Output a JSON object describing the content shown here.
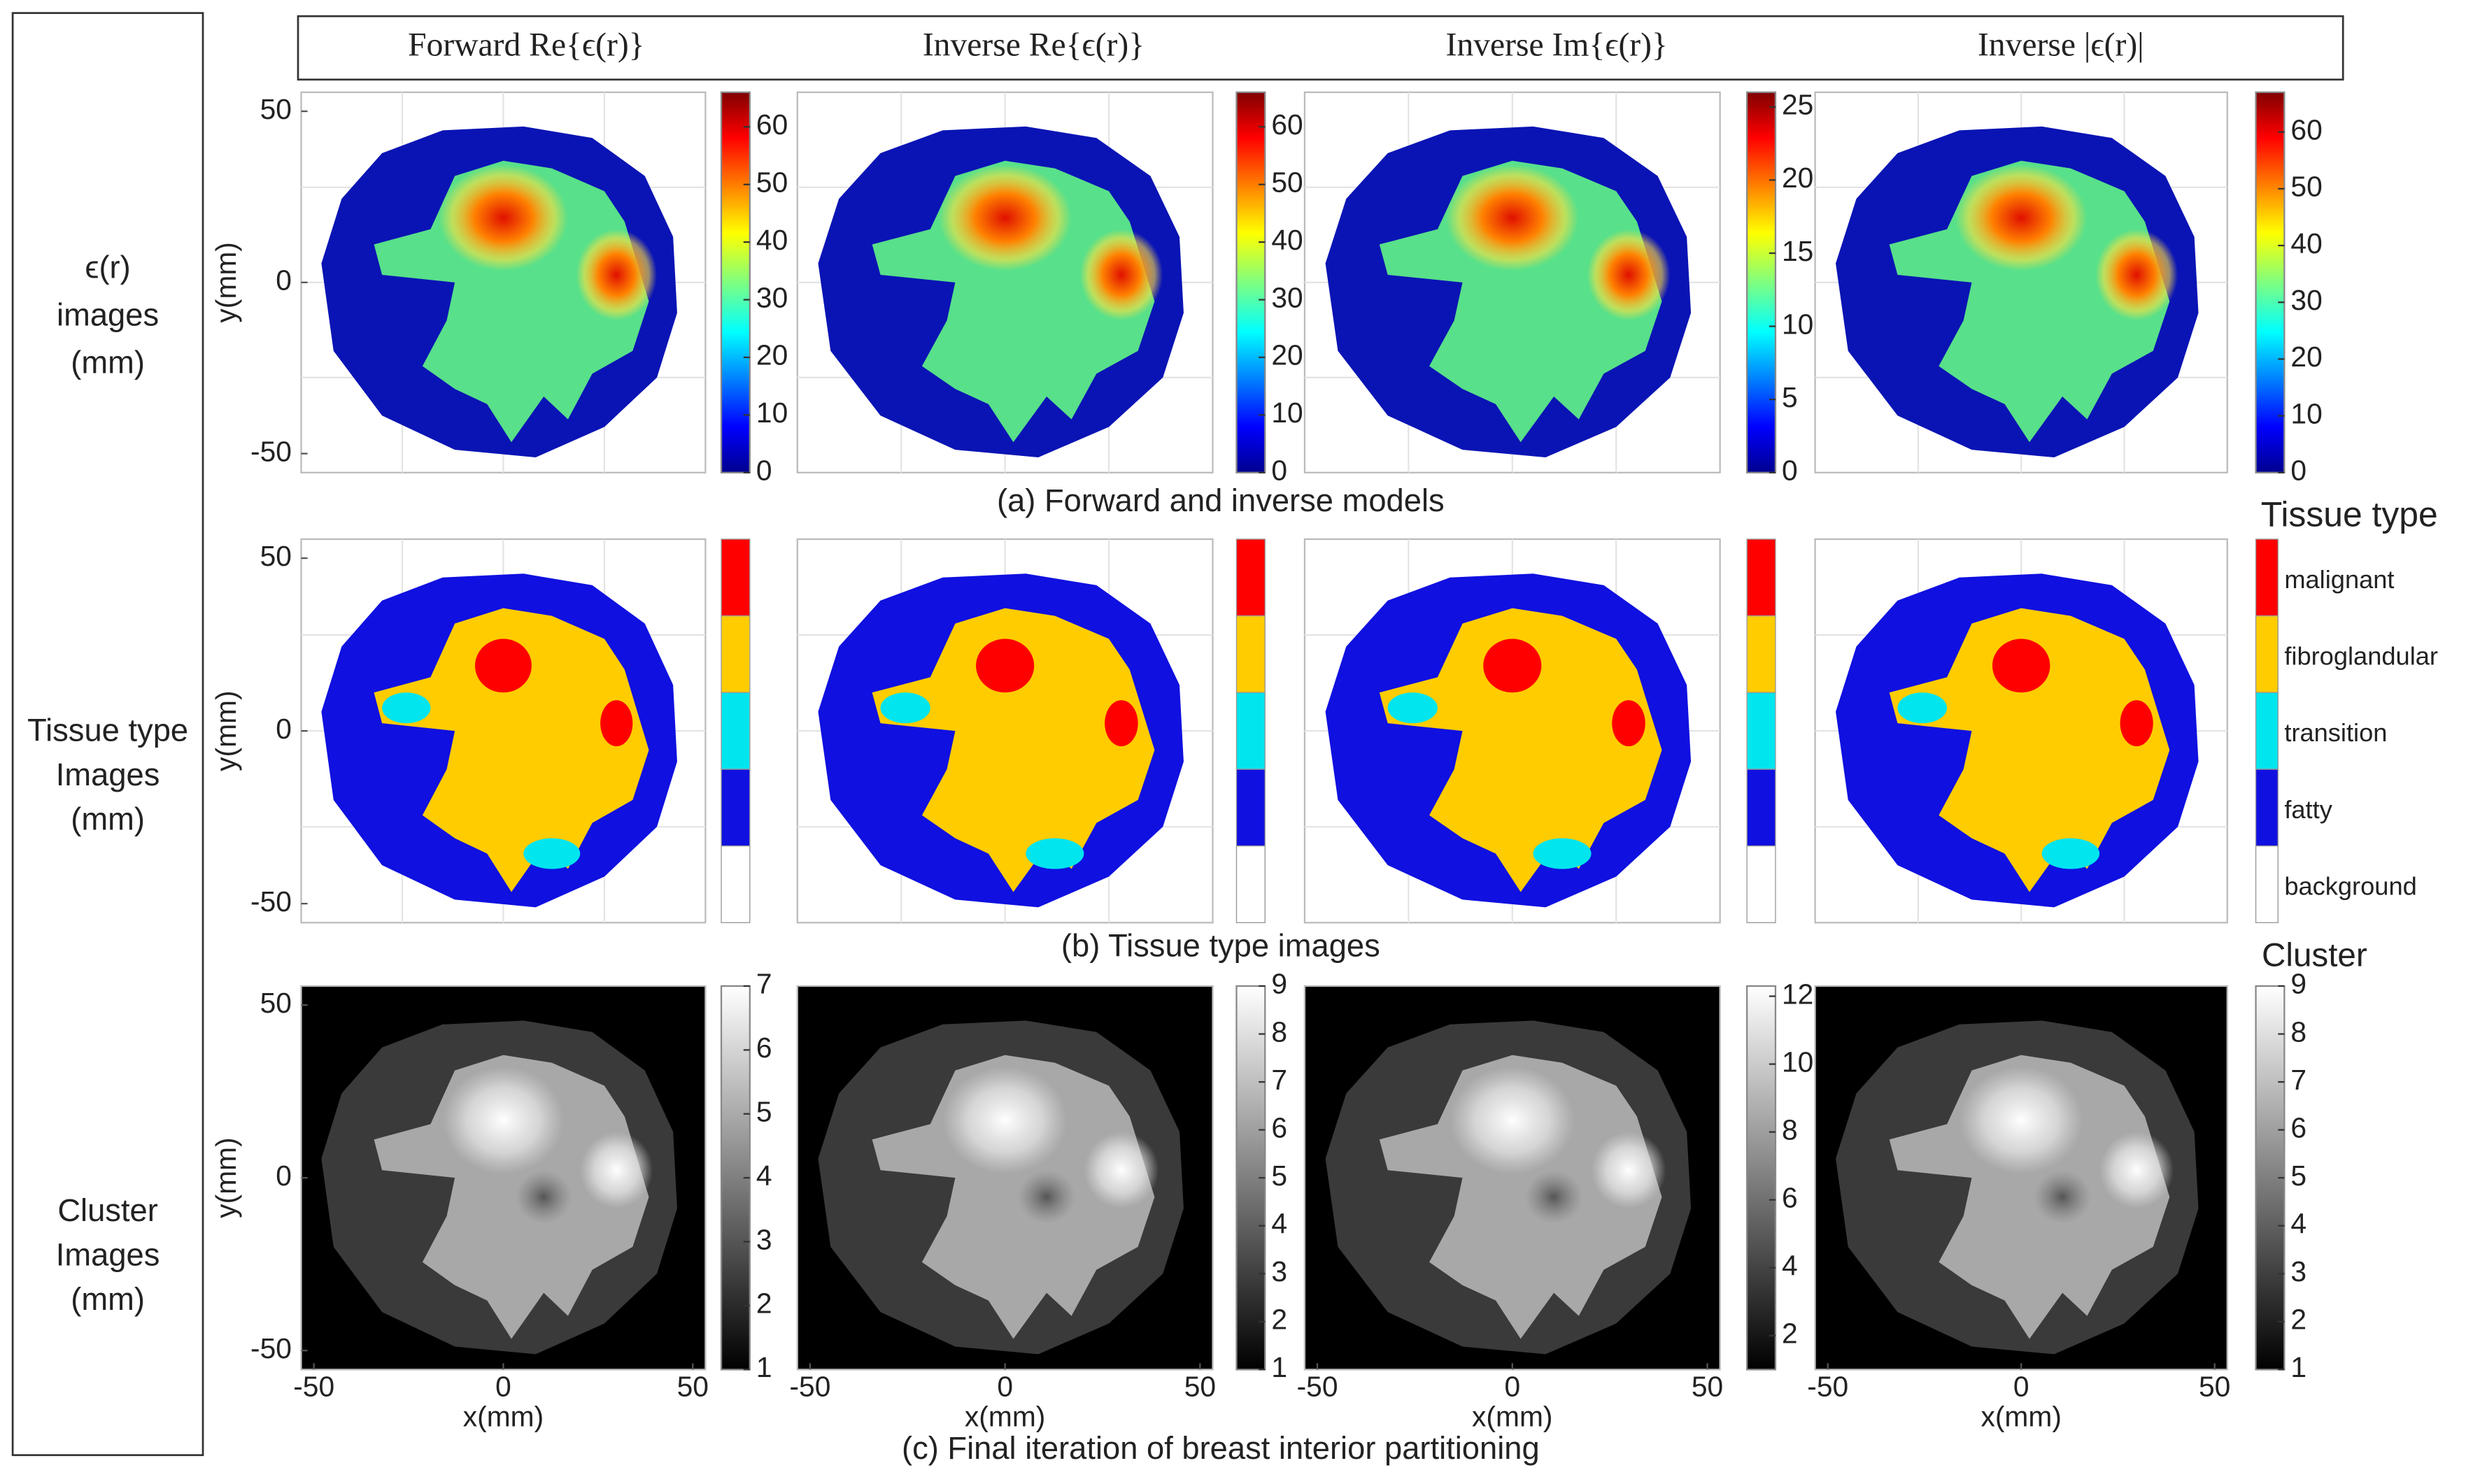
{
  "row_labels": [
    [
      "ϵ(r)",
      "images",
      "(mm)"
    ],
    [
      "Tissue type",
      "Images",
      "(mm)"
    ],
    [
      "Cluster",
      "Images",
      "(mm)"
    ]
  ],
  "column_headers": [
    "Forward Re{ϵ(r)}",
    "Inverse Re{ϵ(r)}",
    "Inverse Im{ϵ(r)}",
    "Inverse |ϵ(r)|"
  ],
  "captions": [
    "(a) Forward and inverse models",
    "(b) Tissue type images",
    "(c) Final iteration of breast interior partitioning"
  ],
  "y_axis_label": "y(mm)",
  "x_axis_label": "x(mm)",
  "y_ticks": [
    50,
    0,
    -50
  ],
  "x_ticks": [
    -50,
    0,
    50
  ],
  "colorbars_a": [
    {
      "lim": [
        0,
        66
      ],
      "ticks": [
        0,
        10,
        20,
        30,
        40,
        50,
        60
      ]
    },
    {
      "lim": [
        0,
        66
      ],
      "ticks": [
        0,
        10,
        20,
        30,
        40,
        50,
        60
      ]
    },
    {
      "lim": [
        0,
        26
      ],
      "ticks": [
        0,
        5,
        10,
        15,
        20,
        25
      ]
    },
    {
      "lim": [
        0,
        67
      ],
      "ticks": [
        0,
        10,
        20,
        30,
        40,
        50,
        60
      ]
    }
  ],
  "tissue_legend": {
    "title": "Tissue type",
    "classes": [
      "malignant",
      "fibroglandular",
      "transition",
      "fatty",
      "background"
    ],
    "colors": [
      "#ff0000",
      "#ffcc00",
      "#00e5ee",
      "#1010e0",
      "#ffffff"
    ]
  },
  "cluster_title": "Cluster",
  "colorbars_c": [
    {
      "lim": [
        1,
        7
      ],
      "ticks": [
        1,
        2,
        3,
        4,
        5,
        6,
        7
      ]
    },
    {
      "lim": [
        1,
        9
      ],
      "ticks": [
        1,
        2,
        3,
        4,
        5,
        6,
        7,
        8,
        9
      ]
    },
    {
      "lim": [
        1,
        12.3
      ],
      "ticks": [
        2,
        4,
        6,
        8,
        10,
        12
      ]
    },
    {
      "lim": [
        1,
        9
      ],
      "ticks": [
        1,
        2,
        3,
        4,
        5,
        6,
        7,
        8,
        9
      ]
    }
  ]
}
